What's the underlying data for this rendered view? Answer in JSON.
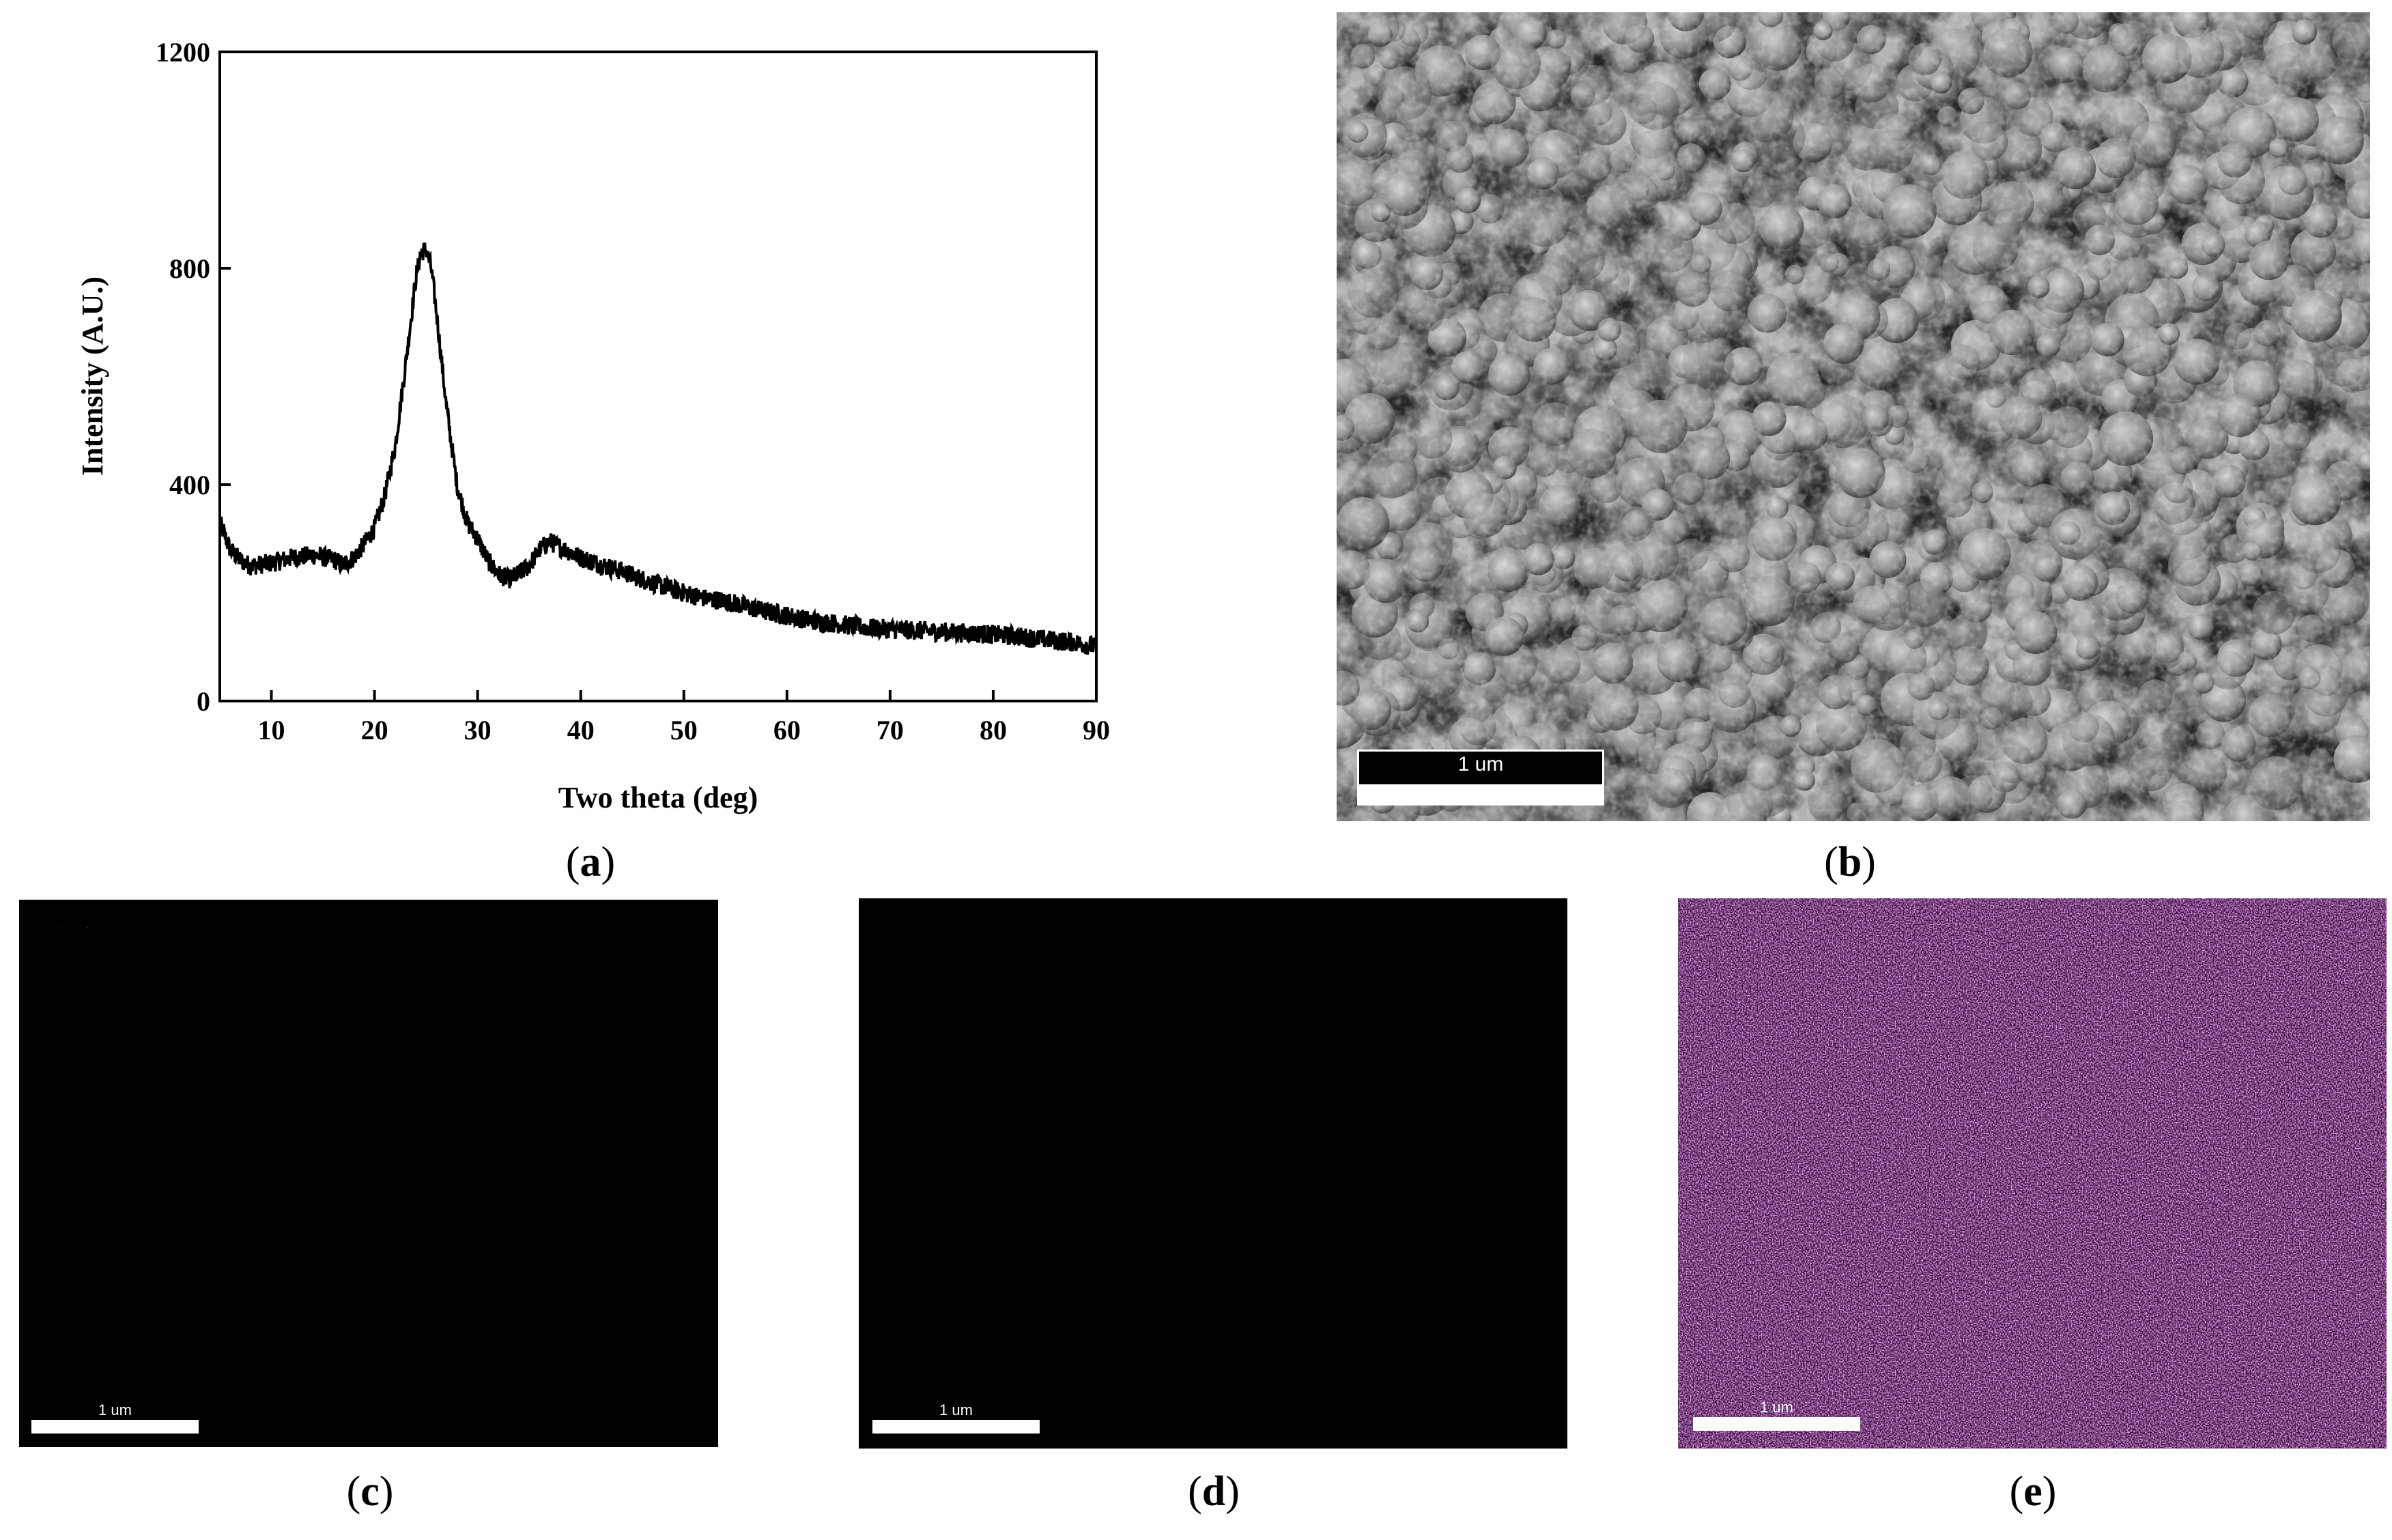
{
  "chart_data": {
    "type": "line",
    "title": "",
    "xlabel": "Two theta (deg)",
    "ylabel": "Intensity (A.U.)",
    "xlim": [
      5,
      90
    ],
    "ylim": [
      0,
      1200
    ],
    "xticks": [
      10,
      20,
      30,
      40,
      50,
      60,
      70,
      80,
      90
    ],
    "yticks": [
      0,
      400,
      800,
      1200
    ],
    "grid": false,
    "legend": "none",
    "series": [
      {
        "x": [
          5,
          6,
          7,
          8,
          10,
          12,
          14,
          16,
          17,
          18,
          19,
          20,
          21,
          22,
          23,
          24,
          24.5,
          25,
          25.5,
          26,
          27,
          28,
          29,
          30,
          31,
          32,
          33,
          34,
          35,
          36,
          37,
          38,
          39,
          40,
          42,
          44,
          46,
          48,
          50,
          52,
          54,
          56,
          58,
          60,
          62,
          64,
          66,
          68,
          70,
          72,
          74,
          76,
          78,
          80,
          82,
          84,
          86,
          88,
          90
        ],
        "y": [
          330,
          280,
          260,
          250,
          255,
          265,
          270,
          262,
          252,
          265,
          290,
          320,
          380,
          470,
          620,
          780,
          830,
          835,
          800,
          720,
          540,
          400,
          330,
          300,
          260,
          235,
          225,
          235,
          250,
          280,
          295,
          285,
          275,
          265,
          252,
          240,
          225,
          212,
          200,
          190,
          185,
          175,
          165,
          158,
          150,
          145,
          140,
          135,
          133,
          131,
          129,
          127,
          125,
          123,
          120,
          116,
          112,
          108,
          100
        ]
      }
    ],
    "line_color": "#000000"
  },
  "panels": {
    "a": {
      "caption": "a"
    },
    "b": {
      "caption": "b",
      "scale_bar": "1 um"
    },
    "c": {
      "caption": "c",
      "scale_bar": "1 um",
      "color": "#c8c020"
    },
    "d": {
      "caption": "d",
      "scale_bar": "1 um",
      "color": "#b89a30"
    },
    "e": {
      "caption": "e",
      "scale_bar": "1 um",
      "color": "#a040a8"
    }
  }
}
